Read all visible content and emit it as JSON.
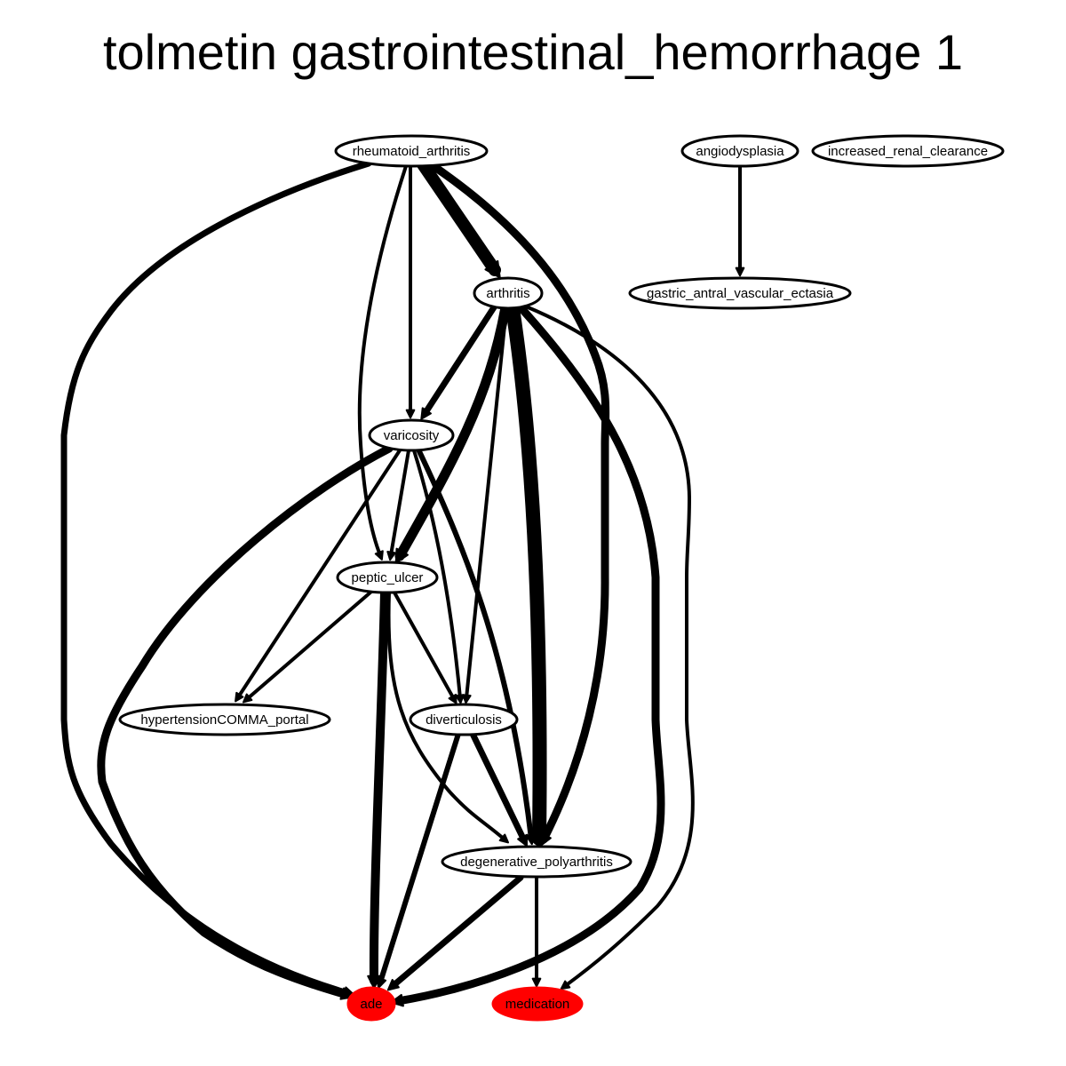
{
  "title": "tolmetin gastrointestinal_hemorrhage 1",
  "colors": {
    "highlight": "#ff0000",
    "edge": "#000000",
    "node_fill": "#ffffff"
  },
  "nodes": [
    {
      "id": "rheumatoid_arthritis",
      "label": "rheumatoid_arthritis",
      "highlight": false
    },
    {
      "id": "angiodysplasia",
      "label": "angiodysplasia",
      "highlight": false
    },
    {
      "id": "increased_renal_clearance",
      "label": "increased_renal_clearance",
      "highlight": false
    },
    {
      "id": "arthritis",
      "label": "arthritis",
      "highlight": false
    },
    {
      "id": "gastric_antral_vascular_ectasia",
      "label": "gastric_antral_vascular_ectasia",
      "highlight": false
    },
    {
      "id": "varicosity",
      "label": "varicosity",
      "highlight": false
    },
    {
      "id": "peptic_ulcer",
      "label": "peptic_ulcer",
      "highlight": false
    },
    {
      "id": "hypertensionCOMMA_portal",
      "label": "hypertensionCOMMA_portal",
      "highlight": false
    },
    {
      "id": "diverticulosis",
      "label": "diverticulosis",
      "highlight": false
    },
    {
      "id": "degenerative_polyarthritis",
      "label": "degenerative_polyarthritis",
      "highlight": false
    },
    {
      "id": "ade",
      "label": "ade",
      "highlight": true
    },
    {
      "id": "medication",
      "label": "medication",
      "highlight": true
    }
  ],
  "edges": [
    {
      "from": "rheumatoid_arthritis",
      "to": "ade",
      "weight": 7
    },
    {
      "from": "rheumatoid_arthritis",
      "to": "peptic_ulcer",
      "weight": 4
    },
    {
      "from": "rheumatoid_arthritis",
      "to": "varicosity",
      "weight": 4
    },
    {
      "from": "rheumatoid_arthritis",
      "to": "arthritis",
      "weight": 14
    },
    {
      "from": "rheumatoid_arthritis",
      "to": "degenerative_polyarthritis",
      "weight": 9
    },
    {
      "from": "angiodysplasia",
      "to": "gastric_antral_vascular_ectasia",
      "weight": 4
    },
    {
      "from": "arthritis",
      "to": "varicosity",
      "weight": 7
    },
    {
      "from": "arthritis",
      "to": "peptic_ulcer",
      "weight": 11
    },
    {
      "from": "arthritis",
      "to": "diverticulosis",
      "weight": 4
    },
    {
      "from": "arthritis",
      "to": "degenerative_polyarthritis",
      "weight": 16
    },
    {
      "from": "arthritis",
      "to": "ade",
      "weight": 9
    },
    {
      "from": "arthritis",
      "to": "medication",
      "weight": 4
    },
    {
      "from": "varicosity",
      "to": "ade",
      "weight": 9
    },
    {
      "from": "varicosity",
      "to": "hypertensionCOMMA_portal",
      "weight": 4
    },
    {
      "from": "varicosity",
      "to": "peptic_ulcer",
      "weight": 4
    },
    {
      "from": "varicosity",
      "to": "diverticulosis",
      "weight": 4
    },
    {
      "from": "varicosity",
      "to": "degenerative_polyarthritis",
      "weight": 6
    },
    {
      "from": "peptic_ulcer",
      "to": "hypertensionCOMMA_portal",
      "weight": 4
    },
    {
      "from": "peptic_ulcer",
      "to": "diverticulosis",
      "weight": 4
    },
    {
      "from": "peptic_ulcer",
      "to": "ade",
      "weight": 10
    },
    {
      "from": "peptic_ulcer",
      "to": "medication",
      "weight": 4
    },
    {
      "from": "diverticulosis",
      "to": "degenerative_polyarthritis",
      "weight": 7
    },
    {
      "from": "diverticulosis",
      "to": "ade",
      "weight": 6
    },
    {
      "from": "degenerative_polyarthritis",
      "to": "ade",
      "weight": 7
    },
    {
      "from": "degenerative_polyarthritis",
      "to": "medication",
      "weight": 4
    }
  ]
}
